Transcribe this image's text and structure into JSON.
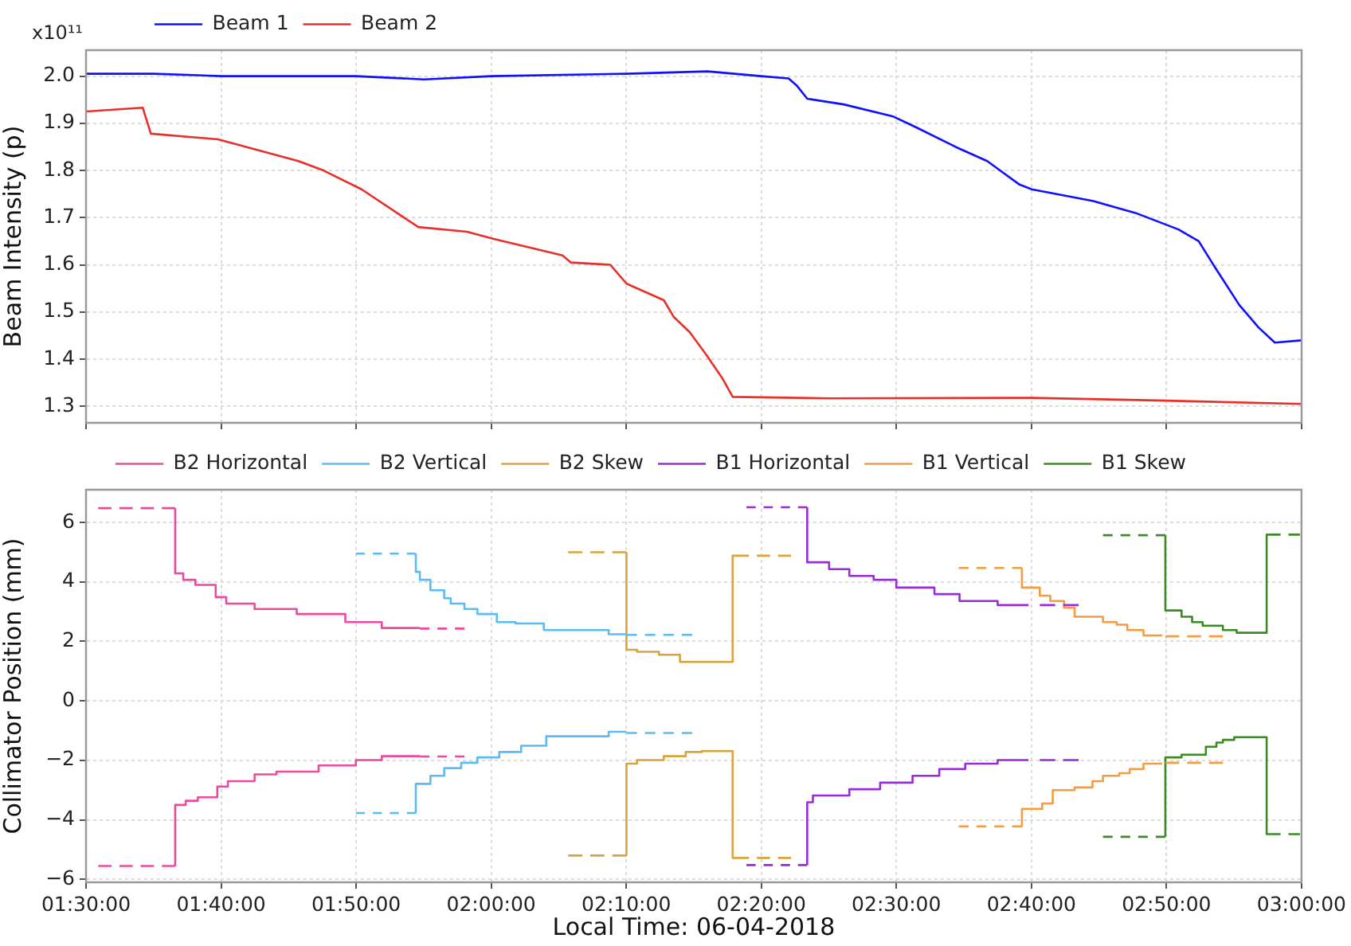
{
  "chart_data": [
    {
      "type": "line",
      "ylabel": "Beam Intensity (p)",
      "annotations": [
        "x10¹¹"
      ],
      "xlim": [
        1.5,
        3
      ],
      "ylim": [
        1.265,
        2.055
      ],
      "xticks": [
        {
          "value": 1.5,
          "label": null
        },
        {
          "value": 1.6667,
          "label": null
        },
        {
          "value": 1.8333,
          "label": null
        },
        {
          "value": 2,
          "label": null
        },
        {
          "value": 2.1667,
          "label": null
        },
        {
          "value": 2.3333,
          "label": null
        },
        {
          "value": 2.5,
          "label": null
        },
        {
          "value": 2.6667,
          "label": null
        },
        {
          "value": 2.8333,
          "label": null
        },
        {
          "value": 3,
          "label": null
        }
      ],
      "yticks": [
        {
          "value": 1.3,
          "label": "1.3"
        },
        {
          "value": 1.4,
          "label": "1.4"
        },
        {
          "value": 1.5,
          "label": "1.5"
        },
        {
          "value": 1.6,
          "label": "1.6"
        },
        {
          "value": 1.7,
          "label": "1.7"
        },
        {
          "value": 1.8,
          "label": "1.8"
        },
        {
          "value": 1.9,
          "label": "1.9"
        },
        {
          "value": 2,
          "label": "2.0"
        }
      ],
      "tick_labels": "y",
      "grid": true,
      "legend": "top left",
      "series": [
        {
          "name": "Beam 1",
          "color": "#1010ff",
          "x": [
            1.5,
            1.583,
            1.667,
            1.833,
            1.917,
            2.0,
            2.167,
            2.267,
            2.333,
            2.367,
            2.377,
            2.39,
            2.435,
            2.495,
            2.52,
            2.573,
            2.612,
            2.652,
            2.667,
            2.743,
            2.795,
            2.848,
            2.873,
            2.893,
            2.923,
            2.947,
            2.967,
            3.0
          ],
          "values": [
            2.005,
            2.005,
            2.0,
            2.0,
            1.993,
            2.0,
            2.005,
            2.01,
            2.0,
            1.995,
            1.98,
            1.952,
            1.94,
            1.915,
            1.895,
            1.85,
            1.82,
            1.77,
            1.76,
            1.735,
            1.71,
            1.675,
            1.65,
            1.595,
            1.515,
            1.467,
            1.435,
            1.44
          ]
        },
        {
          "name": "Beam 2",
          "color": "#e8302a",
          "x": [
            1.5,
            1.57,
            1.58,
            1.663,
            1.762,
            1.793,
            1.84,
            1.91,
            1.97,
            2.003,
            2.088,
            2.098,
            2.147,
            2.167,
            2.213,
            2.225,
            2.245,
            2.265,
            2.285,
            2.298,
            2.417,
            2.667,
            2.833,
            3.0
          ],
          "values": [
            1.925,
            1.933,
            1.878,
            1.866,
            1.82,
            1.8,
            1.76,
            1.68,
            1.67,
            1.655,
            1.62,
            1.605,
            1.6,
            1.56,
            1.525,
            1.49,
            1.457,
            1.41,
            1.36,
            1.32,
            1.317,
            1.318,
            1.312,
            1.305
          ]
        }
      ]
    },
    {
      "type": "step",
      "xlabel": "Local Time: 06-04-2018",
      "ylabel": "Collimator Position (mm)",
      "xlim": [
        1.5,
        3
      ],
      "ylim": [
        -6.1,
        7.1
      ],
      "xticks": [
        {
          "value": 1.5,
          "label": "01:30:00"
        },
        {
          "value": 1.6667,
          "label": "01:40:00"
        },
        {
          "value": 1.8333,
          "label": "01:50:00"
        },
        {
          "value": 2,
          "label": "02:00:00"
        },
        {
          "value": 2.1667,
          "label": "02:10:00"
        },
        {
          "value": 2.3333,
          "label": "02:20:00"
        },
        {
          "value": 2.5,
          "label": "02:30:00"
        },
        {
          "value": 2.6667,
          "label": "02:40:00"
        },
        {
          "value": 2.8333,
          "label": "02:50:00"
        },
        {
          "value": 3,
          "label": "03:00:00"
        }
      ],
      "yticks": [
        {
          "value": -6,
          "label": "−6"
        },
        {
          "value": -4,
          "label": "−4"
        },
        {
          "value": -2,
          "label": "−2"
        },
        {
          "value": 0,
          "label": "0"
        },
        {
          "value": 2,
          "label": "2"
        },
        {
          "value": 4,
          "label": "4"
        },
        {
          "value": 6,
          "label": "6"
        }
      ],
      "grid": true,
      "legend": "top",
      "series": [
        {
          "name": "B2 Horizontal",
          "color": "#ec4a9c",
          "line_style": "solid",
          "x": [
            1.61,
            1.61,
            1.62,
            1.635,
            1.66,
            1.673,
            1.708,
            1.76,
            1.82,
            1.865,
            1.912
          ],
          "values": [
            6.48,
            4.7,
            4.29,
            4.07,
            3.9,
            3.49,
            3.27,
            3.09,
            2.92,
            2.65,
            2.45
          ]
        },
        {
          "color": "#ec4a9c",
          "line_style": "solid",
          "x": [
            1.61,
            1.61,
            1.623,
            1.638,
            1.662,
            1.675,
            1.708,
            1.735,
            1.787,
            1.833,
            1.865,
            1.905,
            1.912
          ],
          "values": [
            -5.55,
            -3.77,
            -3.5,
            -3.36,
            -3.24,
            -2.88,
            -2.7,
            -2.47,
            -2.38,
            -2.17,
            -1.99,
            -1.86,
            -1.86
          ]
        },
        {
          "color": "#ec4a9c",
          "line_style": "dashed",
          "x": [
            1.515,
            1.61,
            1.76,
            1.912,
            1.967
          ],
          "values": [
            6.48,
            6.48,
            null,
            2.43,
            2.43
          ]
        },
        {
          "color": "#ec4a9c",
          "line_style": "dashed",
          "x": [
            1.515,
            1.61,
            1.76,
            1.912,
            1.967
          ],
          "values": [
            -5.55,
            -5.55,
            null,
            -1.87,
            -1.87
          ]
        },
        {
          "name": "B2 Vertical",
          "color": "#5bbcf5",
          "line_style": "solid",
          "x": [
            1.907,
            1.907,
            1.912,
            1.925,
            1.942,
            1.95,
            1.967,
            1.983,
            2.007,
            2.03,
            2.065,
            2.145,
            2.16,
            2.167
          ],
          "values": [
            4.95,
            4.52,
            4.34,
            4.07,
            3.72,
            3.45,
            3.27,
            3.09,
            2.92,
            2.65,
            2.6,
            2.38,
            2.24,
            2.24
          ]
        },
        {
          "color": "#5bbcf5",
          "line_style": "solid",
          "x": [
            1.907,
            1.907,
            1.925,
            1.942,
            1.963,
            1.983,
            2.01,
            2.037,
            2.068,
            2.145,
            2.157,
            2.167
          ],
          "values": [
            -3.77,
            -3.02,
            -2.79,
            -2.52,
            -2.26,
            -2.08,
            -1.9,
            -1.72,
            -1.51,
            -1.19,
            -1.04,
            -1.04
          ]
        },
        {
          "color": "#5bbcf5",
          "line_style": "dashed",
          "x": [
            1.833,
            1.907,
            2.0,
            2.167,
            2.248
          ],
          "values": [
            4.95,
            4.95,
            null,
            2.22,
            2.22
          ]
        },
        {
          "color": "#5bbcf5",
          "line_style": "dashed",
          "x": [
            1.833,
            1.907,
            2.0,
            2.167,
            2.248
          ],
          "values": [
            -3.77,
            -3.77,
            null,
            -1.08,
            -1.08
          ]
        },
        {
          "name": "B2 Skew",
          "color": "#d9a43c",
          "line_style": "solid",
          "x": [
            2.167,
            2.167,
            2.18,
            2.207,
            2.233,
            2.298,
            2.298,
            2.302
          ],
          "values": [
            5.0,
            1.79,
            1.72,
            1.65,
            1.55,
            1.31,
            4.88,
            4.88
          ]
        },
        {
          "color": "#d9a43c",
          "line_style": "solid",
          "x": [
            2.167,
            2.167,
            2.18,
            2.213,
            2.24,
            2.26,
            2.292,
            2.298,
            2.298,
            2.302
          ],
          "values": [
            -5.2,
            -2.26,
            -2.11,
            -1.99,
            -1.86,
            -1.72,
            -1.69,
            -1.69,
            -5.28,
            -5.28
          ]
        },
        {
          "color": "#d9a43c",
          "line_style": "dashed",
          "x": [
            2.095,
            2.167,
            2.25,
            2.302,
            2.37
          ],
          "values": [
            5.0,
            5.0,
            null,
            4.88,
            4.88
          ]
        },
        {
          "color": "#d9a43c",
          "line_style": "dashed",
          "x": [
            2.095,
            2.167,
            2.25,
            2.302,
            2.37
          ],
          "values": [
            -5.2,
            -5.2,
            null,
            -5.28,
            -5.28
          ]
        },
        {
          "name": "B1 Horizontal",
          "color": "#9a2bdb",
          "line_style": "solid",
          "x": [
            2.39,
            2.39,
            2.417,
            2.442,
            2.472,
            2.5,
            2.547,
            2.578,
            2.625,
            2.65,
            2.663
          ],
          "values": [
            6.51,
            4.96,
            4.66,
            4.43,
            4.2,
            4.07,
            3.81,
            3.59,
            3.36,
            3.22,
            3.22
          ]
        },
        {
          "color": "#9a2bdb",
          "line_style": "solid",
          "x": [
            2.39,
            2.39,
            2.397,
            2.442,
            2.48,
            2.52,
            2.553,
            2.585,
            2.625,
            2.655,
            2.663
          ],
          "values": [
            -5.52,
            -3.68,
            -3.41,
            -3.18,
            -2.97,
            -2.75,
            -2.52,
            -2.29,
            -2.11,
            -1.99,
            -1.99
          ]
        },
        {
          "color": "#9a2bdb",
          "line_style": "dashed",
          "x": [
            2.315,
            2.39,
            2.5,
            2.677,
            2.725
          ],
          "values": [
            6.51,
            6.51,
            null,
            3.22,
            3.22
          ]
        },
        {
          "color": "#9a2bdb",
          "line_style": "dashed",
          "x": [
            2.315,
            2.39,
            2.5,
            2.677,
            2.725
          ],
          "values": [
            -5.52,
            -5.52,
            null,
            -1.99,
            -1.99
          ]
        },
        {
          "name": "B1 Vertical",
          "color": "#f59b42",
          "line_style": "solid",
          "x": [
            2.655,
            2.655,
            2.677,
            2.69,
            2.707,
            2.72,
            2.755,
            2.772,
            2.785,
            2.805,
            2.815,
            2.828
          ],
          "values": [
            4.47,
            4.07,
            3.81,
            3.54,
            3.36,
            3.13,
            2.83,
            2.65,
            2.56,
            2.38,
            2.2,
            2.2
          ]
        },
        {
          "color": "#f59b42",
          "line_style": "solid",
          "x": [
            2.655,
            2.655,
            2.68,
            2.693,
            2.72,
            2.742,
            2.755,
            2.775,
            2.788,
            2.805,
            2.815,
            2.828
          ],
          "values": [
            -4.22,
            -3.9,
            -3.63,
            -3.45,
            -3.0,
            -2.91,
            -2.7,
            -2.52,
            -2.43,
            -2.29,
            -2.11,
            -2.11
          ]
        },
        {
          "color": "#f59b42",
          "line_style": "dashed",
          "x": [
            2.577,
            2.655,
            2.75,
            2.832,
            2.903
          ],
          "values": [
            4.47,
            4.47,
            null,
            2.17,
            2.17
          ]
        },
        {
          "color": "#f59b42",
          "line_style": "dashed",
          "x": [
            2.577,
            2.655,
            2.75,
            2.832,
            2.903
          ],
          "values": [
            -4.22,
            -4.22,
            null,
            -2.08,
            -2.08
          ]
        },
        {
          "name": "B1 Skew",
          "color": "#3b8a23",
          "line_style": "solid",
          "x": [
            2.832,
            2.832,
            2.852,
            2.865,
            2.878,
            2.903,
            2.92,
            2.943,
            2.957,
            2.957,
            2.96
          ],
          "values": [
            5.57,
            3.13,
            3.04,
            2.83,
            2.65,
            2.53,
            2.38,
            2.29,
            2.29,
            5.59,
            5.59
          ]
        },
        {
          "color": "#3b8a23",
          "line_style": "solid",
          "x": [
            2.832,
            2.832,
            2.852,
            2.882,
            2.895,
            2.903,
            2.917,
            2.94,
            2.957,
            2.957,
            2.96
          ],
          "values": [
            -4.57,
            -1.99,
            -1.9,
            -1.81,
            -1.54,
            -1.4,
            -1.31,
            -1.22,
            -1.22,
            -4.48,
            -4.48
          ]
        },
        {
          "color": "#3b8a23",
          "line_style": "dashed",
          "x": [
            2.755,
            2.832,
            2.9,
            2.96,
            2.998
          ],
          "values": [
            5.57,
            5.57,
            null,
            5.59,
            5.59
          ]
        },
        {
          "color": "#3b8a23",
          "line_style": "dashed",
          "x": [
            2.755,
            2.832,
            2.9,
            2.96,
            2.998
          ],
          "values": [
            -4.57,
            -4.57,
            null,
            -4.48,
            -4.48
          ]
        }
      ]
    }
  ]
}
